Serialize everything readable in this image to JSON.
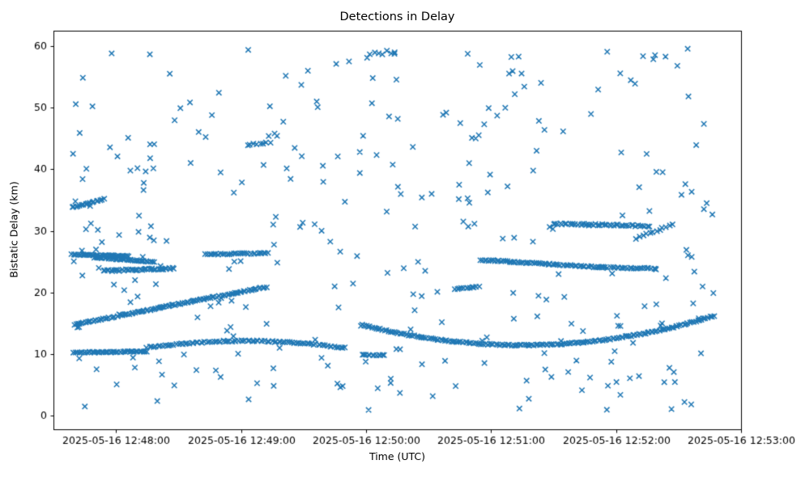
{
  "chart_data": {
    "type": "scatter",
    "title": "Detections in Delay",
    "xlabel": "Time (UTC)",
    "ylabel": "Bistatic Delay (km)",
    "grid": false,
    "legend": "none",
    "marker": {
      "symbol": "x",
      "color": "#1f77b4",
      "size": 3.2,
      "stroke_width": 1.5
    },
    "x_axis": {
      "unit": "seconds since 2025-05-16 12:47:30 UTC (t=0 is left spine)",
      "range": [
        0,
        330
      ],
      "ticks": [
        {
          "t": 30,
          "label": "2025-05-16 12:48:00"
        },
        {
          "t": 90,
          "label": "2025-05-16 12:49:00"
        },
        {
          "t": 150,
          "label": "2025-05-16 12:50:00"
        },
        {
          "t": 210,
          "label": "2025-05-16 12:51:00"
        },
        {
          "t": 270,
          "label": "2025-05-16 12:52:00"
        },
        {
          "t": 330,
          "label": "2025-05-16 12:53:00"
        }
      ]
    },
    "y_axis": {
      "range": [
        -2.2,
        62.5
      ],
      "ticks": [
        0,
        10,
        20,
        30,
        40,
        50,
        60
      ]
    },
    "tracks": [
      {
        "name": "track-26-flat",
        "type": "linear",
        "t0": 9,
        "t1": 36,
        "y0": 26.2,
        "y1": 25.9,
        "n": 40,
        "jitter": 0.07
      },
      {
        "name": "track-25.5-decline",
        "type": "linear",
        "t0": 20,
        "t1": 48,
        "y0": 25.7,
        "y1": 25.0,
        "n": 38,
        "jitter": 0.07
      },
      {
        "name": "track-23.5",
        "type": "linear",
        "t0": 24,
        "t1": 58,
        "y0": 23.5,
        "y1": 23.9,
        "n": 40,
        "jitter": 0.13
      },
      {
        "name": "track-rise-15-to-21",
        "type": "linear",
        "t0": 10,
        "t1": 102,
        "y0": 14.8,
        "y1": 20.9,
        "n": 105,
        "jitter": 0.09
      },
      {
        "name": "track-10-flat",
        "type": "linear",
        "t0": 10,
        "t1": 45,
        "y0": 10.25,
        "y1": 10.45,
        "n": 46,
        "jitter": 0.09
      },
      {
        "name": "track-hump-11-12",
        "type": "parabola",
        "t0": 45,
        "t1": 140,
        "tv": 92,
        "yv": 12.15,
        "a": -0.0005,
        "n": 90,
        "jitter": 0.1
      },
      {
        "name": "track-u-shape",
        "type": "parabola",
        "t0": 148,
        "t1": 317,
        "tv": 225,
        "yv": 11.45,
        "a": 0.00056,
        "n": 175,
        "jitter": 0.1
      },
      {
        "name": "track-25-decline",
        "type": "linear",
        "t0": 205,
        "t1": 263,
        "y0": 25.3,
        "y1": 24.1,
        "n": 60,
        "jitter": 0.09
      },
      {
        "name": "track-24-flat",
        "type": "linear",
        "t0": 263,
        "t1": 289,
        "y0": 24.1,
        "y1": 23.9,
        "n": 26,
        "jitter": 0.09
      },
      {
        "name": "track-31-flat",
        "type": "linear",
        "t0": 240,
        "t1": 286,
        "y0": 31.2,
        "y1": 30.8,
        "n": 44,
        "jitter": 0.13
      },
      {
        "name": "track-34-rise-left",
        "type": "linear",
        "t0": 9,
        "t1": 24,
        "y0": 33.8,
        "y1": 35.2,
        "n": 18,
        "jitter": 0.08
      },
      {
        "name": "track-29-31-rise",
        "type": "linear",
        "t0": 280,
        "t1": 297,
        "y0": 28.8,
        "y1": 31.0,
        "n": 12,
        "jitter": 0.18
      },
      {
        "name": "track-21-short",
        "type": "linear",
        "t0": 193,
        "t1": 204,
        "y0": 20.6,
        "y1": 21.0,
        "n": 12,
        "jitter": 0.1
      },
      {
        "name": "track-9.9-short",
        "type": "linear",
        "t0": 148,
        "t1": 159,
        "y0": 9.9,
        "y1": 9.8,
        "n": 12,
        "jitter": 0.08
      },
      {
        "name": "track-26.3-mid",
        "type": "linear",
        "t0": 73,
        "t1": 103,
        "y0": 26.2,
        "y1": 26.4,
        "n": 30,
        "jitter": 0.1
      },
      {
        "name": "track-44-cluster",
        "type": "linear",
        "t0": 93,
        "t1": 104,
        "y0": 43.9,
        "y1": 44.4,
        "n": 8,
        "jitter": 0.15
      },
      {
        "name": "track-59-cluster",
        "type": "linear",
        "t0": 152,
        "t1": 164,
        "y0": 58.8,
        "y1": 59.1,
        "n": 7,
        "jitter": 0.3
      }
    ],
    "background_scatter": {
      "description": "uniformly distributed clutter detections",
      "count": 310,
      "t_range": [
        8,
        318
      ],
      "y_range": [
        0.6,
        59.6
      ],
      "seed": 1234
    }
  }
}
